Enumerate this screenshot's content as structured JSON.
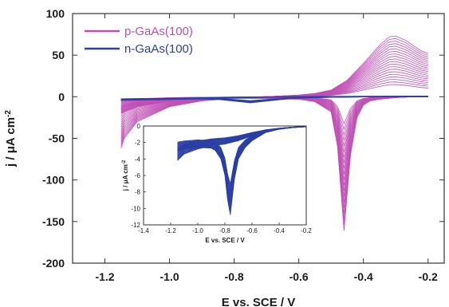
{
  "colors": {
    "p_series": "#c04fb5",
    "n_series": "#2b3fa5",
    "axis": "#333333"
  },
  "chart_data": [
    {
      "id": "main",
      "type": "line",
      "xlabel": "E vs. SCE / V",
      "ylabel_text": "j / μA cm",
      "ylabel_sup": "-2",
      "xlim": [
        -1.3,
        -0.15
      ],
      "ylim": [
        -200,
        100
      ],
      "xticks": [
        -1.2,
        -1.0,
        -0.8,
        -0.6,
        -0.4,
        -0.2
      ],
      "xtick_labels": [
        "-1.2",
        "-1.0",
        "-0.8",
        "-0.6",
        "-0.4",
        "-0.2"
      ],
      "yticks": [
        -200,
        -150,
        -100,
        -50,
        0,
        50,
        100
      ],
      "ytick_labels": [
        "-200",
        "-150",
        "-100",
        "-50",
        "0",
        "50",
        "100"
      ],
      "legend_position": "top-left",
      "series": [
        {
          "name": "p-GaAs(100)",
          "color": "#c04fb5",
          "cycles": 20,
          "anodic_sweep": {
            "x": [
              -1.15,
              -1.14,
              -1.1,
              -1.0,
              -0.9,
              -0.8,
              -0.7,
              -0.6,
              -0.55,
              -0.5,
              -0.45,
              -0.4,
              -0.35,
              -0.32,
              -0.3,
              -0.27,
              -0.24,
              -0.22,
              -0.2
            ],
            "y": [
              -62,
              -50,
              -30,
              -12,
              -5,
              -2,
              0,
              2,
              4,
              8,
              20,
              40,
              62,
              72,
              73,
              68,
              60,
              55,
              52
            ]
          },
          "cathodic_sweep": {
            "x": [
              -0.2,
              -0.25,
              -0.3,
              -0.35,
              -0.38,
              -0.4,
              -0.42,
              -0.44,
              -0.46,
              -0.48,
              -0.5,
              -0.55,
              -0.6,
              -0.7,
              -0.8,
              -0.9,
              -1.0,
              -1.1,
              -1.15
            ],
            "y": [
              0,
              0,
              -1,
              -3,
              -5,
              -10,
              -25,
              -70,
              -161,
              -60,
              -18,
              -6,
              -3,
              -2,
              -2,
              -3,
              -5,
              -12,
              -20
            ]
          },
          "last_cycle_end_values": {
            "peak_anodic": 33,
            "peak_cathodic": -30,
            "end_anodic": 28
          }
        },
        {
          "name": "n-GaAs(100)",
          "color": "#2b3fa5",
          "anodic_sweep": {
            "x": [
              -1.15,
              -1.0,
              -0.9,
              -0.8,
              -0.7,
              -0.6,
              -0.5,
              -0.4,
              -0.3,
              -0.2
            ],
            "y": [
              -4,
              -3,
              -2,
              -1,
              -0.5,
              0,
              0.2,
              0.3,
              0.5,
              0.5
            ]
          },
          "cathodic_sweep": {
            "x": [
              -0.2,
              -0.3,
              -0.4,
              -0.5,
              -0.6,
              -0.65,
              -0.7,
              -0.75,
              -0.8,
              -0.85,
              -0.9,
              -1.0,
              -1.1,
              -1.15
            ],
            "y": [
              0.3,
              0.2,
              0,
              -0.5,
              -1.5,
              -3,
              -5,
              -7,
              -5,
              -3,
              -2.5,
              -3,
              -3.5,
              -4
            ]
          }
        }
      ]
    },
    {
      "id": "inset",
      "type": "line",
      "xlabel": "E vs. SCE / V",
      "ylabel_text": "j / μA cm",
      "ylabel_sup": "-2",
      "xlim": [
        -1.4,
        -0.2
      ],
      "ylim": [
        -12,
        0
      ],
      "xticks": [
        -1.4,
        -1.2,
        -1.0,
        -0.8,
        -0.6,
        -0.4,
        -0.2
      ],
      "xtick_labels": [
        "-1.4",
        "-1.2",
        "-1.0",
        "-0.8",
        "-0.6",
        "-0.4",
        "-0.2"
      ],
      "yticks": [
        -12,
        -10,
        -8,
        -6,
        -4,
        -2,
        0
      ],
      "ytick_labels": [
        "-12",
        "-10",
        "-8",
        "-6",
        "-4",
        "-2",
        "0"
      ],
      "series": [
        {
          "name": "n-GaAs(100)",
          "color": "#2b3fa5",
          "cycles": 20,
          "anodic_sweep": {
            "x": [
              -1.15,
              -1.1,
              -1.0,
              -0.9,
              -0.8,
              -0.75,
              -0.7,
              -0.6,
              -0.5,
              -0.4,
              -0.3,
              -0.2
            ],
            "y": [
              -4.2,
              -3.4,
              -2.8,
              -2.4,
              -2.2,
              -2.0,
              -1.8,
              -1.2,
              -0.7,
              -0.4,
              -0.2,
              -0.1
            ]
          },
          "cathodic_sweep": {
            "x": [
              -0.2,
              -0.3,
              -0.4,
              -0.5,
              -0.6,
              -0.65,
              -0.7,
              -0.73,
              -0.76,
              -0.78,
              -0.8,
              -0.83,
              -0.87,
              -0.9,
              -1.0,
              -1.1,
              -1.15
            ],
            "y": [
              -0.1,
              -0.2,
              -0.4,
              -0.8,
              -1.8,
              -2.6,
              -4.0,
              -6.5,
              -10.8,
              -9.0,
              -6.0,
              -4.0,
              -3.0,
              -2.7,
              -2.6,
              -2.8,
              -3.0
            ]
          },
          "first_cycle_cathodic_peak": -7.0
        }
      ]
    }
  ]
}
